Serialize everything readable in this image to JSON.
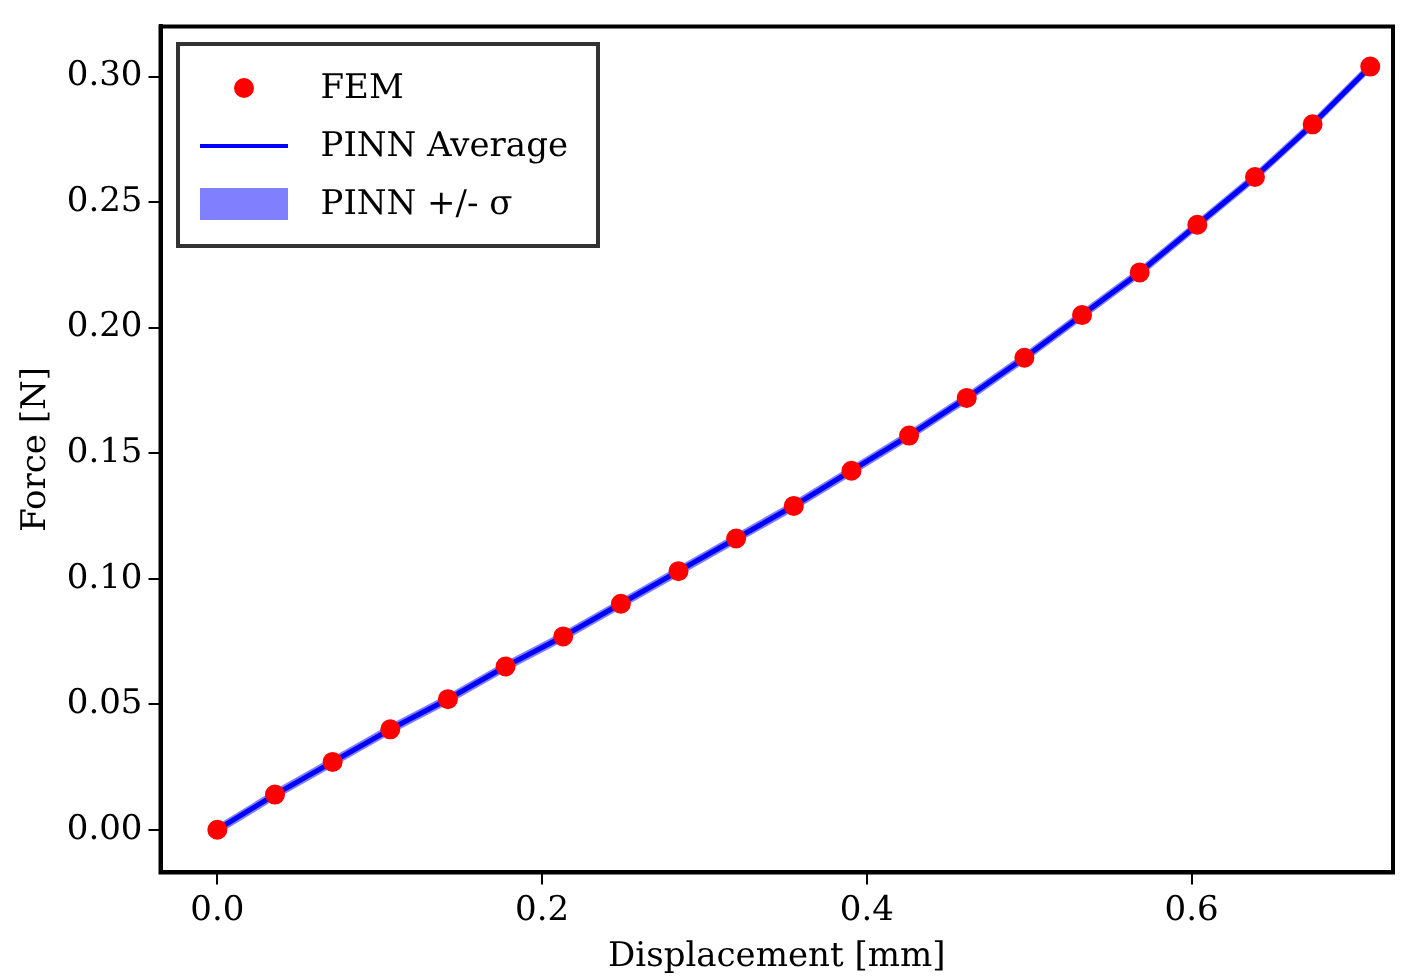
{
  "chart_data": {
    "type": "line",
    "xlabel": "Displacement [mm]",
    "ylabel": "Force [N]",
    "x": [
      0,
      0.0355,
      0.071,
      0.1065,
      0.142,
      0.1775,
      0.213,
      0.2485,
      0.284,
      0.3195,
      0.355,
      0.3905,
      0.426,
      0.4615,
      0.497,
      0.5325,
      0.568,
      0.6035,
      0.639,
      0.6745,
      0.71
    ],
    "series": [
      {
        "name": "FEM",
        "type": "scatter",
        "color": "#ff0000",
        "marker": "circle",
        "values": [
          0,
          0.014,
          0.027,
          0.04,
          0.052,
          0.065,
          0.077,
          0.09,
          0.103,
          0.116,
          0.129,
          0.143,
          0.157,
          0.172,
          0.188,
          0.205,
          0.222,
          0.241,
          0.26,
          0.281,
          0.304
        ]
      },
      {
        "name": "PINN Average",
        "color": "#0000ff",
        "line_style": "solid",
        "values": [
          0,
          0.014,
          0.027,
          0.04,
          0.052,
          0.065,
          0.077,
          0.09,
          0.103,
          0.116,
          0.129,
          0.143,
          0.157,
          0.172,
          0.188,
          0.205,
          0.222,
          0.241,
          0.26,
          0.281,
          0.304
        ],
        "lower": [
          -0.002,
          0.012,
          0.025,
          0.038,
          0.05,
          0.063,
          0.075,
          0.088,
          0.101,
          0.114,
          0.127,
          0.141,
          0.155,
          0.17,
          0.186,
          0.203,
          0.22,
          0.239,
          0.258,
          0.279,
          0.302
        ],
        "upper": [
          0.002,
          0.016,
          0.029,
          0.042,
          0.054,
          0.067,
          0.079,
          0.092,
          0.105,
          0.118,
          0.131,
          0.145,
          0.159,
          0.174,
          0.19,
          0.207,
          0.224,
          0.243,
          0.262,
          0.283,
          0.306
        ]
      },
      {
        "name": "PINN +/- σ",
        "type": "area",
        "color": "#8080ff",
        "values": [
          null,
          null,
          null,
          null,
          null,
          null,
          null,
          null,
          null,
          null,
          null,
          null,
          null,
          null,
          null,
          null,
          null,
          null,
          null,
          null,
          null
        ]
      }
    ],
    "xlim": [
      -0.035,
      0.724
    ],
    "xticks": [
      {
        "value": 0,
        "label": "0.0"
      },
      {
        "value": 0.2,
        "label": "0.2"
      },
      {
        "value": 0.4,
        "label": "0.4"
      },
      {
        "value": 0.6,
        "label": "0.6"
      }
    ],
    "ylim": [
      -0.017,
      0.32
    ],
    "yticks": [
      {
        "value": 0,
        "label": "0.00"
      },
      {
        "value": 0.05,
        "label": "0.05"
      },
      {
        "value": 0.1,
        "label": "0.10"
      },
      {
        "value": 0.15,
        "label": "0.15"
      },
      {
        "value": 0.2,
        "label": "0.20"
      },
      {
        "value": 0.25,
        "label": "0.25"
      },
      {
        "value": 0.3,
        "label": "0.30"
      }
    ],
    "grid": false,
    "legend": "top left"
  }
}
